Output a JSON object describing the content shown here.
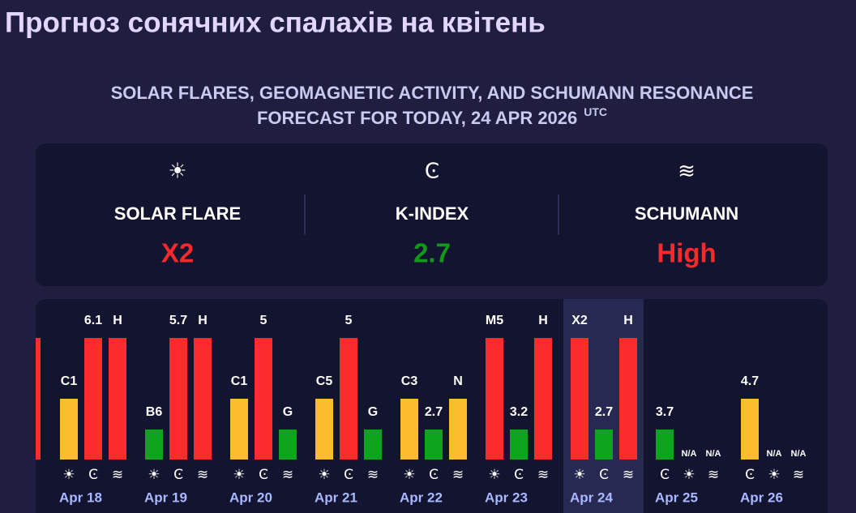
{
  "header": {
    "title": "Прогноз сонячних спалахів на квітень"
  },
  "forecast": {
    "title_line1": "SOLAR FLARES, GEOMAGNETIC ACTIVITY, AND SCHUMANN RESONANCE",
    "title_line2": "FORECAST FOR TODAY, 24 APR 2026",
    "timezone": "UTC",
    "items": [
      {
        "icon": "☀",
        "label": "SOLAR FLARE",
        "value": "X2",
        "color": "#f52a2a"
      },
      {
        "icon": "Ͼ",
        "label": "K-INDEX",
        "value": "2.7",
        "color": "#119a17"
      },
      {
        "icon": "≋",
        "label": "SCHUMANN",
        "value": "High",
        "color": "#f52a2a"
      }
    ]
  },
  "days": [
    {
      "date": "Apr 18",
      "bars": [
        {
          "icon": "☀",
          "label": "C1",
          "color": "#fbbd2c"
        },
        {
          "icon": "Ͼ",
          "label": "6.1",
          "color": "#fb2c2c"
        },
        {
          "icon": "≋",
          "label": "H",
          "color": "#fb2c2c"
        }
      ]
    },
    {
      "date": "Apr 19",
      "bars": [
        {
          "icon": "☀",
          "label": "B6",
          "color": "#0ea41e"
        },
        {
          "icon": "Ͼ",
          "label": "5.7",
          "color": "#fb2c2c"
        },
        {
          "icon": "≋",
          "label": "H",
          "color": "#fb2c2c"
        }
      ]
    },
    {
      "date": "Apr 20",
      "bars": [
        {
          "icon": "☀",
          "label": "C1",
          "color": "#fbbd2c"
        },
        {
          "icon": "Ͼ",
          "label": "5",
          "color": "#fb2c2c"
        },
        {
          "icon": "≋",
          "label": "G",
          "color": "#0ea41e"
        }
      ]
    },
    {
      "date": "Apr 21",
      "bars": [
        {
          "icon": "☀",
          "label": "C5",
          "color": "#fbbd2c"
        },
        {
          "icon": "Ͼ",
          "label": "5",
          "color": "#fb2c2c"
        },
        {
          "icon": "≋",
          "label": "G",
          "color": "#0ea41e"
        }
      ]
    },
    {
      "date": "Apr 22",
      "bars": [
        {
          "icon": "☀",
          "label": "C3",
          "color": "#fbbd2c"
        },
        {
          "icon": "Ͼ",
          "label": "2.7",
          "color": "#0ea41e"
        },
        {
          "icon": "≋",
          "label": "N",
          "color": "#fbbd2c"
        }
      ]
    },
    {
      "date": "Apr 23",
      "bars": [
        {
          "icon": "☀",
          "label": "M5",
          "color": "#fb2c2c"
        },
        {
          "icon": "Ͼ",
          "label": "3.2",
          "color": "#0ea41e"
        },
        {
          "icon": "≋",
          "label": "H",
          "color": "#fb2c2c"
        }
      ]
    },
    {
      "date": "Apr 24",
      "bars": [
        {
          "icon": "☀",
          "label": "X2",
          "color": "#fb2c2c"
        },
        {
          "icon": "Ͼ",
          "label": "2.7",
          "color": "#0ea41e"
        },
        {
          "icon": "≋",
          "label": "H",
          "color": "#fb2c2c"
        }
      ]
    },
    {
      "date": "Apr 25",
      "bars": [
        {
          "icon": "Ͼ",
          "label": "3.7",
          "color": "#0ea41e"
        },
        {
          "icon": "☀",
          "label": "N/A"
        },
        {
          "icon": "≋",
          "label": "N/A"
        }
      ]
    },
    {
      "date": "Apr 26",
      "bars": [
        {
          "icon": "Ͼ",
          "label": "4.7",
          "color": "#fbbd2c"
        },
        {
          "icon": "☀",
          "label": "N/A"
        },
        {
          "icon": "≋",
          "label": "N/A"
        }
      ]
    }
  ]
}
